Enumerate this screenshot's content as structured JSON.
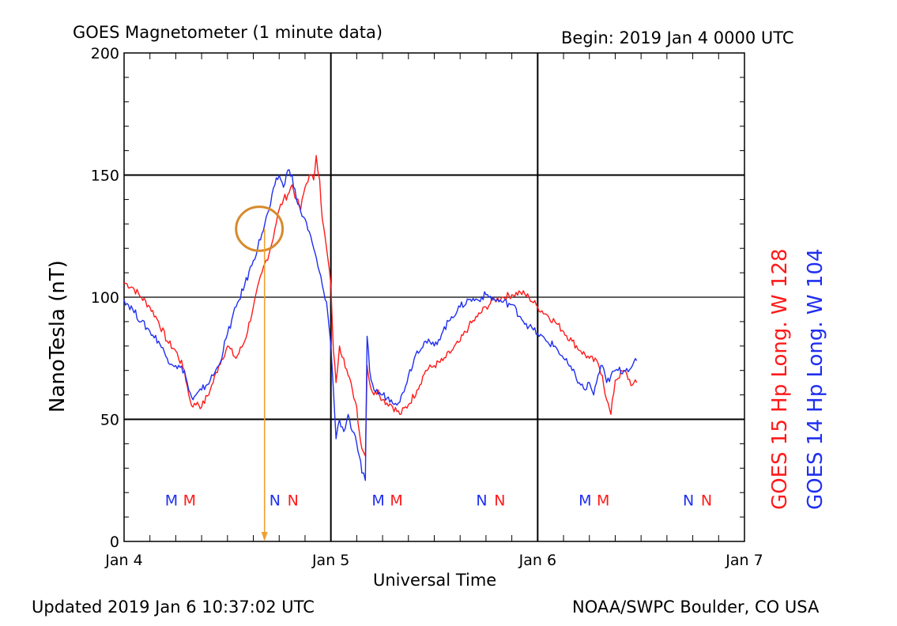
{
  "header": {
    "title": "GOES Magnetometer (1 minute data)",
    "begin": "Begin:  2019 Jan 4 0000 UTC"
  },
  "footer": {
    "updated": "Updated 2019 Jan  6 10:37:02 UTC",
    "credit": "NOAA/SWPC Boulder, CO USA"
  },
  "colors": {
    "goes15": "#ff1a1a",
    "goes14": "#1f2ff0",
    "annotation": "#f0a030",
    "grid": "#000000"
  },
  "chart_data": {
    "type": "line",
    "title": "GOES Magnetometer (1 minute data)",
    "xlabel": "Universal Time",
    "ylabel": "NanoTesla (nT)",
    "xlim": [
      0,
      72
    ],
    "ylim": [
      0,
      200
    ],
    "x_unit": "hours since 2019 Jan 4 0000 UTC",
    "y_ticks": [
      {
        "value": 0,
        "label": "0"
      },
      {
        "value": 50,
        "label": "50"
      },
      {
        "value": 100,
        "label": "100"
      },
      {
        "value": 150,
        "label": "150"
      },
      {
        "value": 200,
        "label": "200"
      }
    ],
    "x_ticks": [
      {
        "value": 0,
        "label": "Jan 4"
      },
      {
        "value": 24,
        "label": "Jan 5"
      },
      {
        "value": 48,
        "label": "Jan 6"
      },
      {
        "value": 72,
        "label": "Jan 7"
      }
    ],
    "grid": true,
    "series": [
      {
        "name": "GOES 15 Hp  Long. W 128",
        "color": "#ff1a1a",
        "points": [
          [
            0,
            106
          ],
          [
            1,
            104
          ],
          [
            2,
            100
          ],
          [
            3,
            96
          ],
          [
            4,
            90
          ],
          [
            5,
            82
          ],
          [
            6,
            78
          ],
          [
            7,
            70
          ],
          [
            7.5,
            60
          ],
          [
            8,
            55
          ],
          [
            8.5,
            57
          ],
          [
            9,
            55
          ],
          [
            10,
            62
          ],
          [
            11,
            72
          ],
          [
            12,
            80
          ],
          [
            13,
            75
          ],
          [
            14,
            82
          ],
          [
            15,
            96
          ],
          [
            16,
            110
          ],
          [
            17,
            120
          ],
          [
            17.5,
            128
          ],
          [
            18,
            136
          ],
          [
            18.5,
            140
          ],
          [
            19,
            142
          ],
          [
            19.5,
            146
          ],
          [
            20,
            140
          ],
          [
            20.5,
            136
          ],
          [
            21,
            145
          ],
          [
            21.5,
            150
          ],
          [
            22,
            148
          ],
          [
            22.3,
            158
          ],
          [
            22.7,
            148
          ],
          [
            23,
            132
          ],
          [
            23.5,
            120
          ],
          [
            24,
            105
          ],
          [
            24.3,
            78
          ],
          [
            24.6,
            65
          ],
          [
            25,
            80
          ],
          [
            25.5,
            75
          ],
          [
            26,
            68
          ],
          [
            26.5,
            62
          ],
          [
            27,
            55
          ],
          [
            27.3,
            45
          ],
          [
            27.6,
            38
          ],
          [
            28,
            35
          ],
          [
            28.2,
            72
          ],
          [
            28.5,
            65
          ],
          [
            29,
            60
          ],
          [
            29.5,
            62
          ],
          [
            30,
            58
          ],
          [
            31,
            56
          ],
          [
            32,
            52
          ],
          [
            33,
            56
          ],
          [
            34,
            62
          ],
          [
            35,
            70
          ],
          [
            36,
            72
          ],
          [
            37,
            74
          ],
          [
            38,
            78
          ],
          [
            39,
            82
          ],
          [
            40,
            88
          ],
          [
            41,
            92
          ],
          [
            42,
            96
          ],
          [
            43,
            99
          ],
          [
            44,
            100
          ],
          [
            45,
            101
          ],
          [
            46,
            102
          ],
          [
            47,
            100
          ],
          [
            48,
            96
          ],
          [
            49,
            93
          ],
          [
            50,
            90
          ],
          [
            51,
            86
          ],
          [
            52,
            82
          ],
          [
            53,
            78
          ],
          [
            54,
            75
          ],
          [
            55,
            73
          ],
          [
            55.5,
            68
          ],
          [
            56,
            58
          ],
          [
            56.5,
            52
          ],
          [
            57,
            66
          ],
          [
            58,
            70
          ],
          [
            59,
            64
          ],
          [
            59.5,
            65
          ]
        ]
      },
      {
        "name": "GOES 14 Hp  Long. W 104",
        "color": "#1f2ff0",
        "points": [
          [
            0,
            99
          ],
          [
            1,
            95
          ],
          [
            2,
            90
          ],
          [
            3,
            86
          ],
          [
            4,
            82
          ],
          [
            5,
            75
          ],
          [
            6,
            72
          ],
          [
            7,
            70
          ],
          [
            7.5,
            62
          ],
          [
            8,
            58
          ],
          [
            9,
            62
          ],
          [
            10,
            66
          ],
          [
            11,
            72
          ],
          [
            12,
            85
          ],
          [
            13,
            96
          ],
          [
            14,
            105
          ],
          [
            15,
            115
          ],
          [
            16,
            126
          ],
          [
            17,
            138
          ],
          [
            17.5,
            146
          ],
          [
            18,
            150
          ],
          [
            18.5,
            145
          ],
          [
            19,
            152
          ],
          [
            19.5,
            150
          ],
          [
            20,
            140
          ],
          [
            20.5,
            135
          ],
          [
            21,
            132
          ],
          [
            22,
            120
          ],
          [
            23,
            105
          ],
          [
            23.5,
            98
          ],
          [
            24,
            80
          ],
          [
            24.3,
            62
          ],
          [
            24.6,
            42
          ],
          [
            25,
            50
          ],
          [
            25.5,
            45
          ],
          [
            26,
            52
          ],
          [
            26.5,
            45
          ],
          [
            27,
            40
          ],
          [
            27.3,
            35
          ],
          [
            27.6,
            28
          ],
          [
            28,
            25
          ],
          [
            28.2,
            84
          ],
          [
            28.5,
            70
          ],
          [
            29,
            62
          ],
          [
            30,
            60
          ],
          [
            31,
            58
          ],
          [
            32,
            57
          ],
          [
            33,
            68
          ],
          [
            34,
            78
          ],
          [
            35,
            82
          ],
          [
            36,
            80
          ],
          [
            37,
            86
          ],
          [
            38,
            92
          ],
          [
            39,
            96
          ],
          [
            40,
            99
          ],
          [
            41,
            99
          ],
          [
            42,
            101
          ],
          [
            43,
            99
          ],
          [
            44,
            98
          ],
          [
            45,
            97
          ],
          [
            46,
            92
          ],
          [
            47,
            88
          ],
          [
            48,
            85
          ],
          [
            49,
            82
          ],
          [
            50,
            80
          ],
          [
            51,
            75
          ],
          [
            52,
            70
          ],
          [
            53,
            64
          ],
          [
            53.5,
            62
          ],
          [
            54,
            65
          ],
          [
            54.5,
            60
          ],
          [
            55,
            68
          ],
          [
            55.5,
            72
          ],
          [
            56,
            65
          ],
          [
            57,
            70
          ],
          [
            58,
            70
          ],
          [
            59,
            72
          ],
          [
            59.5,
            74
          ]
        ]
      }
    ],
    "markers": {
      "y_value": 17,
      "items": [
        {
          "x": 5.5,
          "label": "M",
          "series": "GOES 14 Hp  Long. W 104"
        },
        {
          "x": 7.6,
          "label": "M",
          "series": "GOES 15 Hp  Long. W 128"
        },
        {
          "x": 17.5,
          "label": "N",
          "series": "GOES 14 Hp  Long. W 104"
        },
        {
          "x": 19.6,
          "label": "N",
          "series": "GOES 15 Hp  Long. W 128"
        },
        {
          "x": 29.5,
          "label": "M",
          "series": "GOES 14 Hp  Long. W 104"
        },
        {
          "x": 31.6,
          "label": "M",
          "series": "GOES 15 Hp  Long. W 128"
        },
        {
          "x": 41.5,
          "label": "N",
          "series": "GOES 14 Hp  Long. W 104"
        },
        {
          "x": 43.6,
          "label": "N",
          "series": "GOES 15 Hp  Long. W 128"
        },
        {
          "x": 53.5,
          "label": "M",
          "series": "GOES 14 Hp  Long. W 104"
        },
        {
          "x": 55.6,
          "label": "M",
          "series": "GOES 15 Hp  Long. W 128"
        },
        {
          "x": 65.5,
          "label": "N",
          "series": "GOES 14 Hp  Long. W 104"
        },
        {
          "x": 67.6,
          "label": "N",
          "series": "GOES 15 Hp  Long. W 128"
        }
      ]
    },
    "annotations": [
      {
        "type": "ellipse",
        "center": {
          "x": 15.7,
          "y": 128
        },
        "radius": {
          "x": 2.7,
          "y": 9
        }
      },
      {
        "type": "arrow",
        "from": {
          "x": 16.3,
          "y": 128
        },
        "to": {
          "x": 16.3,
          "y": 0
        }
      }
    ]
  }
}
